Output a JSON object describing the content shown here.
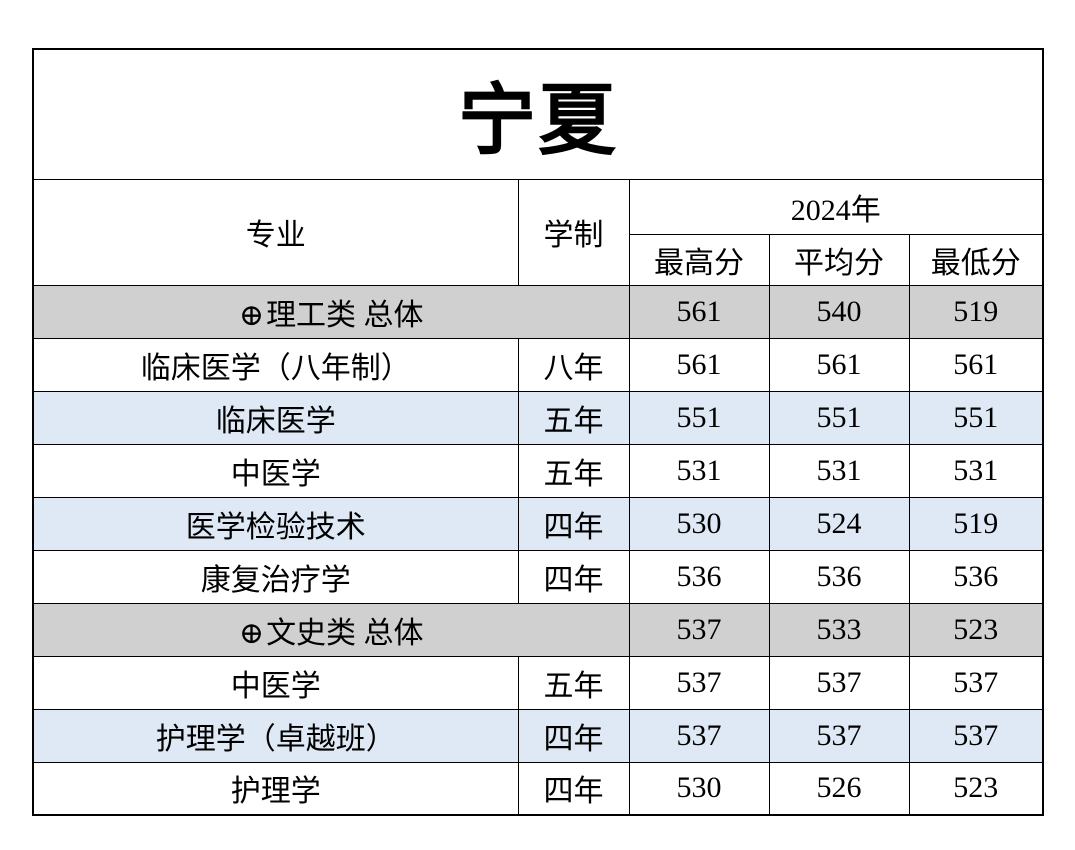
{
  "page": {
    "title": "宁夏"
  },
  "colors": {
    "category_row_bg": "#D0D0D0",
    "shaded_row_bg": "#DEE9F5",
    "border": "#000000",
    "background": "#FFFFFF"
  },
  "table": {
    "header": {
      "major": "专业",
      "duration": "学制",
      "year_group": "2024年",
      "score_cols": [
        "最高分",
        "平均分",
        "最低分"
      ]
    },
    "rows": [
      {
        "type": "category",
        "icon": "⊕",
        "major": "理工类 总体",
        "duration": "",
        "scores": [
          "561",
          "540",
          "519"
        ],
        "shaded": false
      },
      {
        "type": "normal",
        "major": "临床医学（八年制）",
        "duration": "八年",
        "scores": [
          "561",
          "561",
          "561"
        ],
        "shaded": false
      },
      {
        "type": "normal",
        "major": "临床医学",
        "duration": "五年",
        "scores": [
          "551",
          "551",
          "551"
        ],
        "shaded": true
      },
      {
        "type": "normal",
        "major": "中医学",
        "duration": "五年",
        "scores": [
          "531",
          "531",
          "531"
        ],
        "shaded": false
      },
      {
        "type": "normal",
        "major": "医学检验技术",
        "duration": "四年",
        "scores": [
          "530",
          "524",
          "519"
        ],
        "shaded": true
      },
      {
        "type": "normal",
        "major": "康复治疗学",
        "duration": "四年",
        "scores": [
          "536",
          "536",
          "536"
        ],
        "shaded": false
      },
      {
        "type": "category",
        "icon": "⊕",
        "major": "文史类 总体",
        "duration": "",
        "scores": [
          "537",
          "533",
          "523"
        ],
        "shaded": false
      },
      {
        "type": "normal",
        "major": "中医学",
        "duration": "五年",
        "scores": [
          "537",
          "537",
          "537"
        ],
        "shaded": false
      },
      {
        "type": "normal",
        "major": "护理学（卓越班）",
        "duration": "四年",
        "scores": [
          "537",
          "537",
          "537"
        ],
        "shaded": true
      },
      {
        "type": "normal",
        "major": "护理学",
        "duration": "四年",
        "scores": [
          "530",
          "526",
          "523"
        ],
        "shaded": false
      }
    ]
  }
}
